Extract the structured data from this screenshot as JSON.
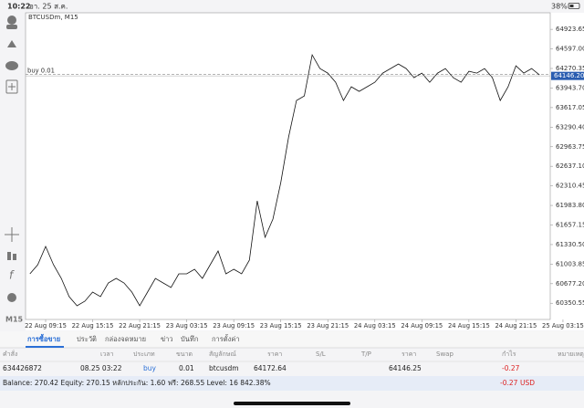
{
  "status_bar": {
    "time": "10:22",
    "date": "อา. 25 ส.ค.",
    "battery": "38%"
  },
  "toolbar": {
    "timeframe": "M15"
  },
  "chart_data": {
    "type": "line",
    "title": "BTCUSDm, M15",
    "categories": [
      null,
      null,
      "22 Aug 09:15",
      null,
      null,
      null,
      null,
      null,
      "22 Aug 15:15",
      null,
      null,
      null,
      null,
      null,
      "22 Aug 21:15",
      null,
      null,
      null,
      null,
      null,
      "23 Aug 03:15",
      null,
      null,
      null,
      null,
      null,
      "23 Aug 09:15",
      null,
      null,
      null,
      null,
      null,
      "23 Aug 15:15",
      null,
      null,
      null,
      null,
      null,
      "23 Aug 21:15",
      null,
      null,
      null,
      null,
      null,
      "24 Aug 03:15",
      null,
      null,
      null,
      null,
      null,
      "24 Aug 09:15",
      null,
      null,
      null,
      null,
      null,
      "24 Aug 15:15",
      null,
      null,
      null,
      null,
      null,
      "24 Aug 21:15",
      null,
      null,
      null,
      null,
      null,
      "25 Aug 03:15"
    ],
    "series": [
      {
        "name": "BTCUSDm",
        "color": "#111111",
        "values": [
          60842,
          60994,
          61299,
          60994,
          60766,
          60461,
          60309,
          60385,
          60537,
          60461,
          60690,
          60766,
          60690,
          60537,
          60309,
          60537,
          60766,
          60690,
          60614,
          60842,
          60842,
          60918,
          60766,
          60994,
          61223,
          60842,
          60918,
          60842,
          61071,
          62060,
          61451,
          61756,
          62365,
          63127,
          63736,
          63812,
          64497,
          64269,
          64193,
          64040,
          63736,
          63964,
          63888,
          63964,
          64040,
          64193,
          64269,
          64345,
          64269,
          64116,
          64193,
          64040,
          64193,
          64269,
          64116,
          64040,
          64223,
          64193,
          64269,
          64116,
          63736,
          63964,
          64315,
          64193,
          64269,
          64162,
          null,
          null,
          null
        ]
      }
    ],
    "ylim": [
      60080,
      65200
    ],
    "yticks": [
      60350.55,
      {
        "value": 60677.2,
        "label": "60677.20"
      },
      61003.85,
      {
        "value": 61330.5,
        "label": "61330.50"
      },
      61657.15,
      {
        "value": 61983.8,
        "label": "61983.80"
      },
      62310.45,
      {
        "value": 62637.1,
        "label": "62637.10"
      },
      62963.75,
      {
        "value": 63290.4,
        "label": "63290.40"
      },
      63617.05,
      {
        "value": 63943.7,
        "label": "63943.70"
      },
      64270.35,
      {
        "value": 64597,
        "label": "64597.00"
      },
      64923.65
    ],
    "order_line": {
      "label": "buy 0.01",
      "value": 64172.64
    },
    "current_price": {
      "value": 64146.2,
      "label": "64146.20"
    }
  },
  "tabs": [
    "การซื้อขาย",
    "ประวัติ",
    "กล่องจดหมาย",
    "ข่าว",
    "บันทึก",
    "การตั้งค่า"
  ],
  "table": {
    "columns": [
      "คำสั่ง",
      "เวลา",
      "ประเภท",
      "ขนาด",
      "สัญลักษณ์",
      "ราคา",
      "S/L",
      "T/P",
      "ราคา",
      "Swap",
      "กำไร",
      "หมายเหตุ"
    ],
    "rows": [
      [
        "634426872",
        "08.25 03:22",
        "buy",
        "0.01",
        "btcusdm",
        "64172.64",
        "64146.25",
        "-0.27"
      ]
    ]
  },
  "summary": {
    "text": "Balance: 270.42 Equity: 270.15 หลักประกัน: 1.60 ฟรี: 268.55 Level: 16 842.38%",
    "profit": "-0.27",
    "currency": "USD"
  }
}
